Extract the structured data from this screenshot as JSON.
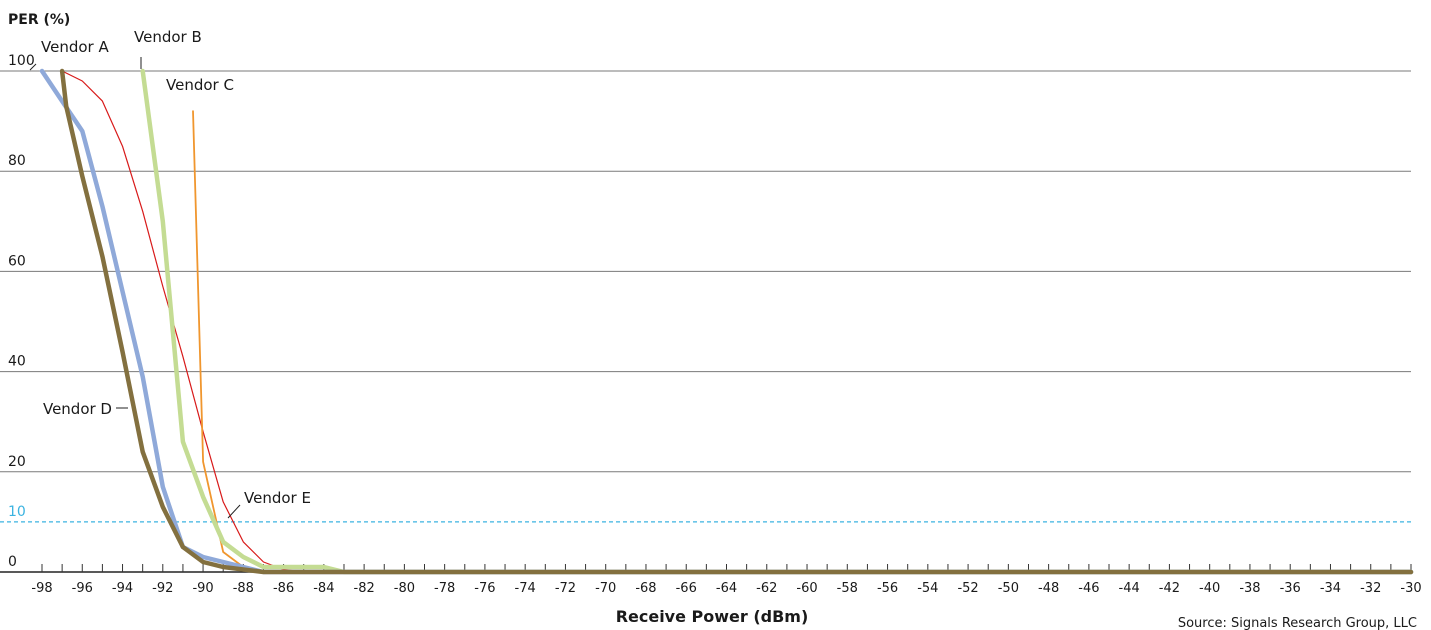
{
  "chart_data": {
    "type": "line",
    "title": "",
    "ylabel": "PER (%)",
    "xlabel": "Receive Power (dBm)",
    "source": "Source: Signals Research Group, LLC",
    "xlim": [
      -98,
      -30
    ],
    "ylim": [
      0,
      100
    ],
    "x_ticks": [
      -98,
      -96,
      -94,
      -92,
      -90,
      -88,
      -86,
      -84,
      -82,
      -80,
      -78,
      -76,
      -74,
      -72,
      -70,
      -68,
      -66,
      -64,
      -62,
      -60,
      -58,
      -56,
      -54,
      -52,
      -50,
      -48,
      -46,
      -44,
      -42,
      -40,
      -38,
      -36,
      -34,
      -32,
      -30
    ],
    "y_ticks": [
      0,
      20,
      40,
      60,
      80,
      100
    ],
    "reference_line": {
      "value": 10,
      "label": "10",
      "color": "#3bb3e0"
    },
    "grid": true,
    "series": [
      {
        "name": "Vendor A",
        "color": "#8fa9d9",
        "width": 4.5,
        "points": [
          [
            -98,
            100
          ],
          [
            -97,
            94
          ],
          [
            -96,
            88
          ],
          [
            -95,
            73
          ],
          [
            -94,
            56
          ],
          [
            -93,
            39
          ],
          [
            -92,
            17
          ],
          [
            -91,
            5
          ],
          [
            -90,
            3
          ],
          [
            -89,
            2
          ],
          [
            -88,
            1
          ],
          [
            -87,
            0
          ],
          [
            -86,
            0
          ],
          [
            -30,
            0
          ]
        ]
      },
      {
        "name": "Vendor B",
        "color": "#c4dc93",
        "width": 4.5,
        "points": [
          [
            -93,
            100
          ],
          [
            -92,
            70
          ],
          [
            -91,
            26
          ],
          [
            -90,
            15
          ],
          [
            -89,
            6
          ],
          [
            -88,
            3
          ],
          [
            -87,
            1
          ],
          [
            -86,
            1
          ],
          [
            -85,
            1
          ],
          [
            -84,
            1
          ],
          [
            -83,
            0
          ],
          [
            -30,
            0
          ]
        ]
      },
      {
        "name": "Vendor C",
        "color": "#f0962e",
        "width": 1.8,
        "points": [
          [
            -90.5,
            92
          ],
          [
            -90,
            22
          ],
          [
            -89,
            4
          ],
          [
            -88,
            1
          ],
          [
            -87,
            0
          ],
          [
            -30,
            0
          ]
        ]
      },
      {
        "name": "Vendor D",
        "color": "#83703f",
        "width": 4.5,
        "points": [
          [
            -97,
            100
          ],
          [
            -96.8,
            93
          ],
          [
            -96,
            79
          ],
          [
            -95,
            63
          ],
          [
            -94,
            44
          ],
          [
            -93,
            24
          ],
          [
            -92,
            13
          ],
          [
            -91,
            5
          ],
          [
            -90,
            2
          ],
          [
            -89,
            1
          ],
          [
            -88,
            0.5
          ],
          [
            -87,
            0
          ],
          [
            -30,
            0
          ]
        ]
      },
      {
        "name": "Vendor E",
        "color": "#d81a1a",
        "width": 1.2,
        "points": [
          [
            -97,
            100
          ],
          [
            -96,
            98
          ],
          [
            -95,
            94
          ],
          [
            -94,
            85
          ],
          [
            -93,
            72
          ],
          [
            -92,
            57
          ],
          [
            -91,
            43
          ],
          [
            -90,
            28
          ],
          [
            -89,
            14
          ],
          [
            -88,
            6
          ],
          [
            -87,
            2
          ],
          [
            -86,
            0.5
          ],
          [
            -85,
            0
          ],
          [
            -30,
            0
          ]
        ]
      }
    ],
    "annotations": [
      "Vendor A",
      "Vendor B",
      "Vendor C",
      "Vendor D",
      "Vendor E"
    ]
  }
}
